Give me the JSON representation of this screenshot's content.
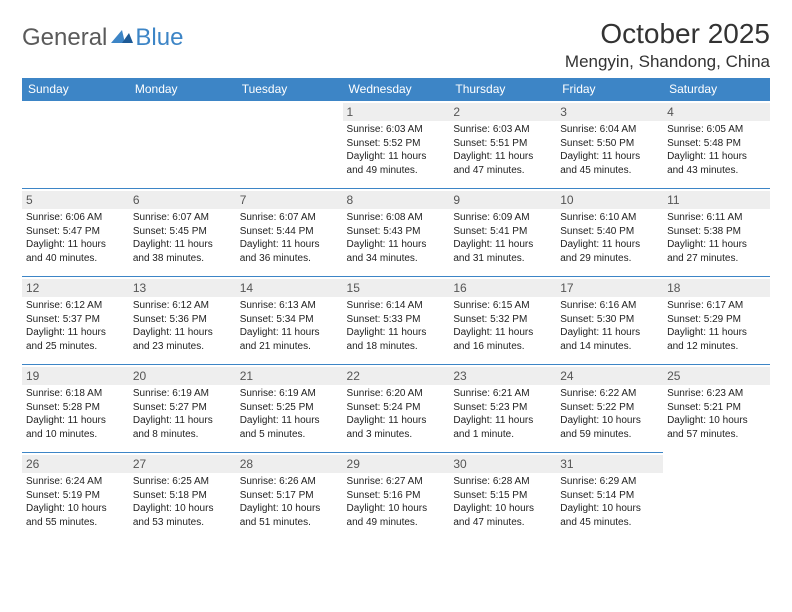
{
  "brand": {
    "name1": "General",
    "name2": "Blue"
  },
  "title": "October 2025",
  "location": "Mengyin, Shandong, China",
  "colors": {
    "header_bg": "#3d85c6",
    "header_text": "#ffffff",
    "daynum_bg": "#eeeeee",
    "border": "#3d85c6",
    "text": "#222222",
    "brand_gray": "#5a5a5a",
    "brand_blue": "#3d85c6"
  },
  "layout": {
    "columns": 7,
    "rows": 5
  },
  "weekdays": [
    "Sunday",
    "Monday",
    "Tuesday",
    "Wednesday",
    "Thursday",
    "Friday",
    "Saturday"
  ],
  "cells": [
    {
      "day": null
    },
    {
      "day": null
    },
    {
      "day": null
    },
    {
      "day": 1,
      "sunrise": "6:03 AM",
      "sunset": "5:52 PM",
      "daylight": "11 hours and 49 minutes."
    },
    {
      "day": 2,
      "sunrise": "6:03 AM",
      "sunset": "5:51 PM",
      "daylight": "11 hours and 47 minutes."
    },
    {
      "day": 3,
      "sunrise": "6:04 AM",
      "sunset": "5:50 PM",
      "daylight": "11 hours and 45 minutes."
    },
    {
      "day": 4,
      "sunrise": "6:05 AM",
      "sunset": "5:48 PM",
      "daylight": "11 hours and 43 minutes."
    },
    {
      "day": 5,
      "sunrise": "6:06 AM",
      "sunset": "5:47 PM",
      "daylight": "11 hours and 40 minutes."
    },
    {
      "day": 6,
      "sunrise": "6:07 AM",
      "sunset": "5:45 PM",
      "daylight": "11 hours and 38 minutes."
    },
    {
      "day": 7,
      "sunrise": "6:07 AM",
      "sunset": "5:44 PM",
      "daylight": "11 hours and 36 minutes."
    },
    {
      "day": 8,
      "sunrise": "6:08 AM",
      "sunset": "5:43 PM",
      "daylight": "11 hours and 34 minutes."
    },
    {
      "day": 9,
      "sunrise": "6:09 AM",
      "sunset": "5:41 PM",
      "daylight": "11 hours and 31 minutes."
    },
    {
      "day": 10,
      "sunrise": "6:10 AM",
      "sunset": "5:40 PM",
      "daylight": "11 hours and 29 minutes."
    },
    {
      "day": 11,
      "sunrise": "6:11 AM",
      "sunset": "5:38 PM",
      "daylight": "11 hours and 27 minutes."
    },
    {
      "day": 12,
      "sunrise": "6:12 AM",
      "sunset": "5:37 PM",
      "daylight": "11 hours and 25 minutes."
    },
    {
      "day": 13,
      "sunrise": "6:12 AM",
      "sunset": "5:36 PM",
      "daylight": "11 hours and 23 minutes."
    },
    {
      "day": 14,
      "sunrise": "6:13 AM",
      "sunset": "5:34 PM",
      "daylight": "11 hours and 21 minutes."
    },
    {
      "day": 15,
      "sunrise": "6:14 AM",
      "sunset": "5:33 PM",
      "daylight": "11 hours and 18 minutes."
    },
    {
      "day": 16,
      "sunrise": "6:15 AM",
      "sunset": "5:32 PM",
      "daylight": "11 hours and 16 minutes."
    },
    {
      "day": 17,
      "sunrise": "6:16 AM",
      "sunset": "5:30 PM",
      "daylight": "11 hours and 14 minutes."
    },
    {
      "day": 18,
      "sunrise": "6:17 AM",
      "sunset": "5:29 PM",
      "daylight": "11 hours and 12 minutes."
    },
    {
      "day": 19,
      "sunrise": "6:18 AM",
      "sunset": "5:28 PM",
      "daylight": "11 hours and 10 minutes."
    },
    {
      "day": 20,
      "sunrise": "6:19 AM",
      "sunset": "5:27 PM",
      "daylight": "11 hours and 8 minutes."
    },
    {
      "day": 21,
      "sunrise": "6:19 AM",
      "sunset": "5:25 PM",
      "daylight": "11 hours and 5 minutes."
    },
    {
      "day": 22,
      "sunrise": "6:20 AM",
      "sunset": "5:24 PM",
      "daylight": "11 hours and 3 minutes."
    },
    {
      "day": 23,
      "sunrise": "6:21 AM",
      "sunset": "5:23 PM",
      "daylight": "11 hours and 1 minute."
    },
    {
      "day": 24,
      "sunrise": "6:22 AM",
      "sunset": "5:22 PM",
      "daylight": "10 hours and 59 minutes."
    },
    {
      "day": 25,
      "sunrise": "6:23 AM",
      "sunset": "5:21 PM",
      "daylight": "10 hours and 57 minutes."
    },
    {
      "day": 26,
      "sunrise": "6:24 AM",
      "sunset": "5:19 PM",
      "daylight": "10 hours and 55 minutes."
    },
    {
      "day": 27,
      "sunrise": "6:25 AM",
      "sunset": "5:18 PM",
      "daylight": "10 hours and 53 minutes."
    },
    {
      "day": 28,
      "sunrise": "6:26 AM",
      "sunset": "5:17 PM",
      "daylight": "10 hours and 51 minutes."
    },
    {
      "day": 29,
      "sunrise": "6:27 AM",
      "sunset": "5:16 PM",
      "daylight": "10 hours and 49 minutes."
    },
    {
      "day": 30,
      "sunrise": "6:28 AM",
      "sunset": "5:15 PM",
      "daylight": "10 hours and 47 minutes."
    },
    {
      "day": 31,
      "sunrise": "6:29 AM",
      "sunset": "5:14 PM",
      "daylight": "10 hours and 45 minutes."
    }
  ],
  "labels": {
    "sunrise": "Sunrise:",
    "sunset": "Sunset:",
    "daylight": "Daylight:"
  }
}
